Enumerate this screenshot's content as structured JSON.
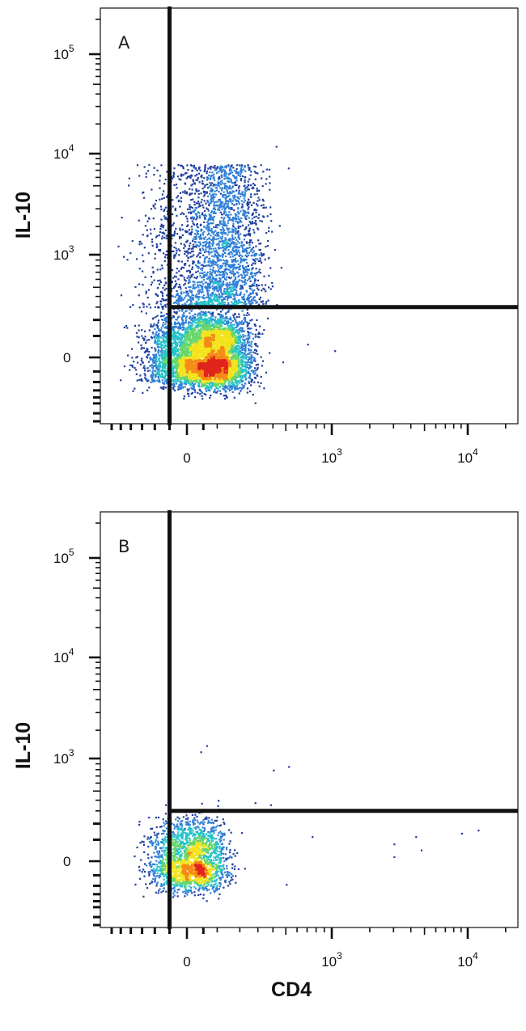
{
  "chart_data": [
    {
      "type": "scatter",
      "panel_label": "A",
      "xlabel": "CD4",
      "ylabel": "IL-10",
      "x_scale": "biexponential",
      "y_scale": "biexponential",
      "xlim": [
        -300,
        25000
      ],
      "ylim": [
        -900,
        250000
      ],
      "x_ticks": [
        {
          "base": "0",
          "exp": ""
        },
        {
          "base": "10",
          "exp": "3"
        },
        {
          "base": "10",
          "exp": "4"
        }
      ],
      "y_ticks": [
        {
          "base": "0",
          "exp": ""
        },
        {
          "base": "10",
          "exp": "3"
        },
        {
          "base": "10",
          "exp": "4"
        },
        {
          "base": "10",
          "exp": "5"
        }
      ],
      "quadrant_gate": {
        "x": -50,
        "y": 300
      },
      "populations": [
        {
          "name": "IL-10 negative cluster",
          "center": {
            "x": 60,
            "y": 0
          },
          "spread": {
            "x": 90,
            "y": 120
          },
          "points": 5200
        },
        {
          "name": "IL-10 positive streak",
          "center_x": 100,
          "y_range": [
            300,
            8000
          ],
          "points": 2600
        }
      ],
      "outliers": [
        {
          "x": 700,
          "y": 60
        },
        {
          "x": 1050,
          "y": 30
        },
        {
          "x": 420,
          "y": 12000
        },
        {
          "x": 280,
          "y": -480
        }
      ],
      "grid": false,
      "legend": "none",
      "colors": [
        "#1f3e9e",
        "#2f7fd6",
        "#27c2c8",
        "#66d66a",
        "#f2e31c",
        "#f58a16",
        "#e0251c"
      ]
    },
    {
      "type": "scatter",
      "panel_label": "B",
      "xlabel": "CD4",
      "ylabel": "IL-10",
      "x_scale": "biexponential",
      "y_scale": "biexponential",
      "xlim": [
        -300,
        25000
      ],
      "ylim": [
        -900,
        250000
      ],
      "x_ticks": [
        {
          "base": "0",
          "exp": ""
        },
        {
          "base": "10",
          "exp": "3"
        },
        {
          "base": "10",
          "exp": "4"
        }
      ],
      "y_ticks": [
        {
          "base": "0",
          "exp": ""
        },
        {
          "base": "10",
          "exp": "3"
        },
        {
          "base": "10",
          "exp": "4"
        },
        {
          "base": "10",
          "exp": "5"
        }
      ],
      "quadrant_gate": {
        "x": -50,
        "y": 300
      },
      "populations": [
        {
          "name": "main cluster",
          "center": {
            "x": 10,
            "y": 0
          },
          "spread": {
            "x": 60,
            "y": 110
          },
          "points": 2200
        }
      ],
      "outliers": [
        {
          "x": 40,
          "y": 1200
        },
        {
          "x": 60,
          "y": 1400
        },
        {
          "x": 400,
          "y": 800
        },
        {
          "x": 520,
          "y": 860
        },
        {
          "x": 750,
          "y": 120
        },
        {
          "x": 3000,
          "y": 80
        },
        {
          "x": 3000,
          "y": 20
        },
        {
          "x": 4300,
          "y": 120
        },
        {
          "x": 4700,
          "y": 50
        },
        {
          "x": 9000,
          "y": 140
        },
        {
          "x": 12000,
          "y": 160
        },
        {
          "x": 500,
          "y": -180
        },
        {
          "x": 280,
          "y": 380
        },
        {
          "x": 380,
          "y": 360
        }
      ],
      "grid": false,
      "legend": "none",
      "colors": [
        "#1f3e9e",
        "#2f7fd6",
        "#27c2c8",
        "#66d66a",
        "#f2e31c",
        "#f58a16",
        "#e0251c"
      ]
    }
  ]
}
